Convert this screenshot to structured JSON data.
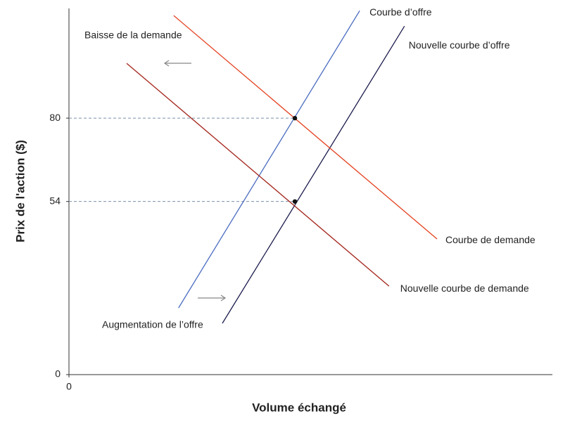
{
  "chart_data": {
    "type": "line",
    "ylabel": "Prix de l'action ($)",
    "xlabel": "Volume échangé",
    "xlim": [
      0,
      150
    ],
    "xticks": [
      0
    ],
    "ylim": [
      0,
      114
    ],
    "yticks": [
      0,
      54,
      80
    ],
    "series": [
      {
        "name": "Courbe d’offre",
        "color": "#4a6cc0",
        "x": [
          34,
          90.2
        ],
        "values": [
          20.8,
          113.5
        ]
      },
      {
        "name": "Nouvelle courbe d’offre",
        "color": "#1c1c4e",
        "x": [
          47.6,
          104.1
        ],
        "values": [
          16,
          108.7
        ]
      },
      {
        "name": "Courbe de demande",
        "color": "#e4411f",
        "x": [
          32.5,
          114.2
        ],
        "values": [
          112,
          42.3
        ]
      },
      {
        "name": "Nouvelle courbe de demande",
        "color": "#a3241b",
        "x": [
          17.9,
          99.3
        ],
        "values": [
          97.1,
          27.6
        ]
      }
    ],
    "points": {
      "x": [
        70.1,
        70.1
      ],
      "values": [
        80,
        54
      ]
    },
    "annotations": [
      "Baisse de la demande",
      "Augmentation de l’offre"
    ]
  }
}
